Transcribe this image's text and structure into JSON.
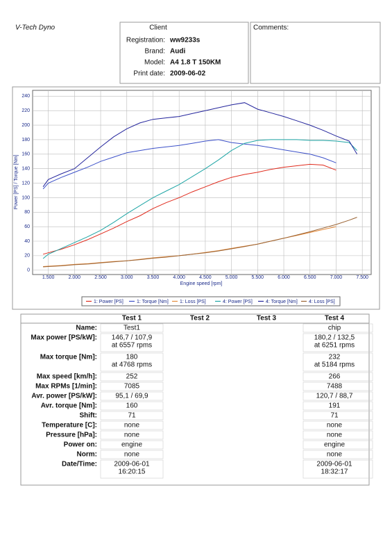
{
  "header": {
    "title": "V-Tech Dyno"
  },
  "client": {
    "title": "Client",
    "fields": [
      {
        "label": "Registration:",
        "value": "ww9233s"
      },
      {
        "label": "Brand:",
        "value": "Audi"
      },
      {
        "label": "Model:",
        "value": "A4 1.8  T 150KM"
      },
      {
        "label": "Print date:",
        "value": "2009-06-02"
      }
    ]
  },
  "comments": {
    "title": "Comments:"
  },
  "chart_data": {
    "type": "line",
    "y_label": "Power [PS] / Torque [Nm]",
    "x_label": "Engine speed [rpm]",
    "x": [
      1400,
      1500,
      1750,
      2000,
      2250,
      2500,
      2750,
      3000,
      3250,
      3500,
      3750,
      4000,
      4250,
      4500,
      4750,
      5000,
      5250,
      5500,
      5750,
      6000,
      6250,
      6500,
      6750,
      7000,
      7250,
      7400
    ],
    "xlim": [
      1200,
      7670
    ],
    "xticks": [
      {
        "value": 1500,
        "label": "1.500"
      },
      {
        "value": 2000,
        "label": "2.000"
      },
      {
        "value": 2500,
        "label": "2.500"
      },
      {
        "value": 3000,
        "label": "3.000"
      },
      {
        "value": 3500,
        "label": "3.500"
      },
      {
        "value": 4000,
        "label": "4.000"
      },
      {
        "value": 4500,
        "label": "4.500"
      },
      {
        "value": 5000,
        "label": "5.000"
      },
      {
        "value": 5500,
        "label": "5.500"
      },
      {
        "value": 6000,
        "label": "6.000"
      },
      {
        "value": 6500,
        "label": "6.500"
      },
      {
        "value": 7000,
        "label": "7.000"
      },
      {
        "value": 7500,
        "label": "7.500"
      }
    ],
    "ylim": [
      -6,
      248
    ],
    "yticks": [
      0,
      20,
      40,
      60,
      80,
      100,
      120,
      140,
      160,
      180,
      200,
      220,
      240
    ],
    "grid": true,
    "series": [
      {
        "name": "1: Power [PS]",
        "color": "#e02a1c",
        "values": [
          22,
          24,
          29,
          35,
          42,
          50,
          58,
          67,
          75,
          85,
          93,
          100,
          108,
          115,
          122,
          128,
          132,
          135,
          139,
          142,
          144,
          146,
          145,
          138,
          null,
          null
        ]
      },
      {
        "name": "1: Torque [Nm]",
        "color": "#3a4fc8",
        "values": [
          112,
          120,
          128,
          135,
          142,
          150,
          156,
          162,
          165,
          168,
          170,
          172,
          175,
          178,
          180,
          176,
          174,
          172,
          169,
          166,
          163,
          160,
          155,
          148,
          null,
          null
        ]
      },
      {
        "name": "1: Loss [PS]",
        "color": "#e58a3a",
        "values": [
          5,
          5.5,
          6.5,
          8,
          9,
          10.5,
          12,
          13,
          15,
          17,
          18.5,
          20,
          22,
          24.5,
          27,
          30,
          33,
          36,
          40,
          44,
          48,
          52,
          56,
          60,
          null,
          null
        ]
      },
      {
        "name": "4: Power [PS]",
        "color": "#1ea5a5",
        "values": [
          16,
          22,
          30,
          38,
          46,
          55,
          66,
          78,
          89,
          100,
          109,
          118,
          129,
          140,
          152,
          165,
          175,
          179,
          180,
          180,
          180,
          179,
          179,
          178,
          176,
          165
        ]
      },
      {
        "name": "4: Torque [Nm]",
        "color": "#23249c",
        "values": [
          115,
          125,
          133,
          140,
          155,
          170,
          184,
          195,
          203,
          208,
          210,
          212,
          216,
          220,
          224,
          228,
          231,
          222,
          217,
          212,
          206,
          200,
          193,
          185,
          178,
          160
        ]
      },
      {
        "name": "4: Loss [PS]",
        "color": "#9a6232",
        "values": [
          4.5,
          5,
          6,
          7.5,
          8.5,
          10,
          11.5,
          13,
          14.5,
          16.5,
          18,
          20,
          22,
          24,
          26.5,
          29.5,
          32.5,
          36,
          40,
          44,
          48.5,
          53,
          58,
          63,
          69,
          73
        ]
      }
    ]
  },
  "results": {
    "columns": [
      "Test 1",
      "Test 2",
      "Test 3",
      "Test 4"
    ],
    "rows": [
      {
        "label": "Name:",
        "test1": [
          "Test1"
        ],
        "test4": [
          "chip"
        ]
      },
      {
        "label": "Max power [PS/kW]:",
        "test1": [
          "146,7 / 107,9",
          "at 6557 rpms"
        ],
        "test4": [
          "180,2 / 132,5",
          "at 6251 rpms"
        ]
      },
      {
        "label": "Max torque [Nm]:",
        "test1": [
          "180",
          "at 4768 rpms"
        ],
        "test4": [
          "232",
          "at 5184 rpms"
        ]
      },
      {
        "label": "Max speed [km/h]:",
        "test1": [
          "252"
        ],
        "test4": [
          "266"
        ]
      },
      {
        "label": "Max RPMs [1/min]:",
        "test1": [
          "7085"
        ],
        "test4": [
          "7488"
        ]
      },
      {
        "label": "Avr. power [PS/kW]:",
        "test1": [
          "95,1 / 69,9"
        ],
        "test4": [
          "120,7 / 88,7"
        ]
      },
      {
        "label": "Avr. torque [Nm]:",
        "test1": [
          "160"
        ],
        "test4": [
          "191"
        ]
      },
      {
        "label": "Shift:",
        "test1": [
          "71"
        ],
        "test4": [
          "71"
        ]
      },
      {
        "label": "Temperature [C]:",
        "test1": [
          "none"
        ],
        "test4": [
          "none"
        ]
      },
      {
        "label": "Pressure [hPa]:",
        "test1": [
          "none"
        ],
        "test4": [
          "none"
        ]
      },
      {
        "label": "Power on:",
        "test1": [
          "engine"
        ],
        "test4": [
          "engine"
        ]
      },
      {
        "label": "Norm:",
        "test1": [
          "none"
        ],
        "test4": [
          "none"
        ]
      },
      {
        "label": "Date/Time:",
        "test1": [
          "2009-06-01",
          "16:20:15"
        ],
        "test4": [
          "2009-06-01",
          "18:32:17"
        ]
      }
    ]
  }
}
